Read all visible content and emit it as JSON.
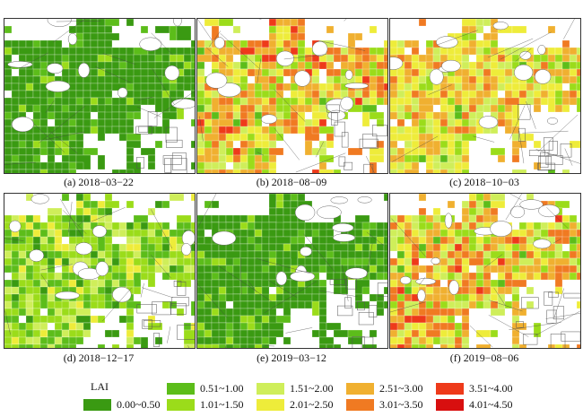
{
  "panels": [
    {
      "caption": "(a) 2018−03−22",
      "palette": "green_low"
    },
    {
      "caption": "(b) 2018−08−09",
      "palette": "orange_high"
    },
    {
      "caption": "(c) 2018−10−03",
      "palette": "yellow_mid"
    },
    {
      "caption": "(d) 2018−12−17",
      "palette": "lightgreen"
    },
    {
      "caption": "(e) 2019−03−12",
      "palette": "green_low"
    },
    {
      "caption": "(f) 2019−08−06",
      "palette": "orange_high"
    }
  ],
  "legend": {
    "title": "LAI",
    "classes": [
      {
        "label": "0.00~0.50",
        "color": "#3a9a12"
      },
      {
        "label": "0.51~1.00",
        "color": "#5cbd1a"
      },
      {
        "label": "1.01~1.50",
        "color": "#9bdc1a"
      },
      {
        "label": "1.51~2.00",
        "color": "#cfee5a"
      },
      {
        "label": "2.01~2.50",
        "color": "#eeec3a"
      },
      {
        "label": "2.51~3.00",
        "color": "#f0b030"
      },
      {
        "label": "3.01~3.50",
        "color": "#f07a22"
      },
      {
        "label": "3.51~4.00",
        "color": "#ee3a1a"
      },
      {
        "label": "4.01~4.50",
        "color": "#d80f0f"
      }
    ]
  }
}
